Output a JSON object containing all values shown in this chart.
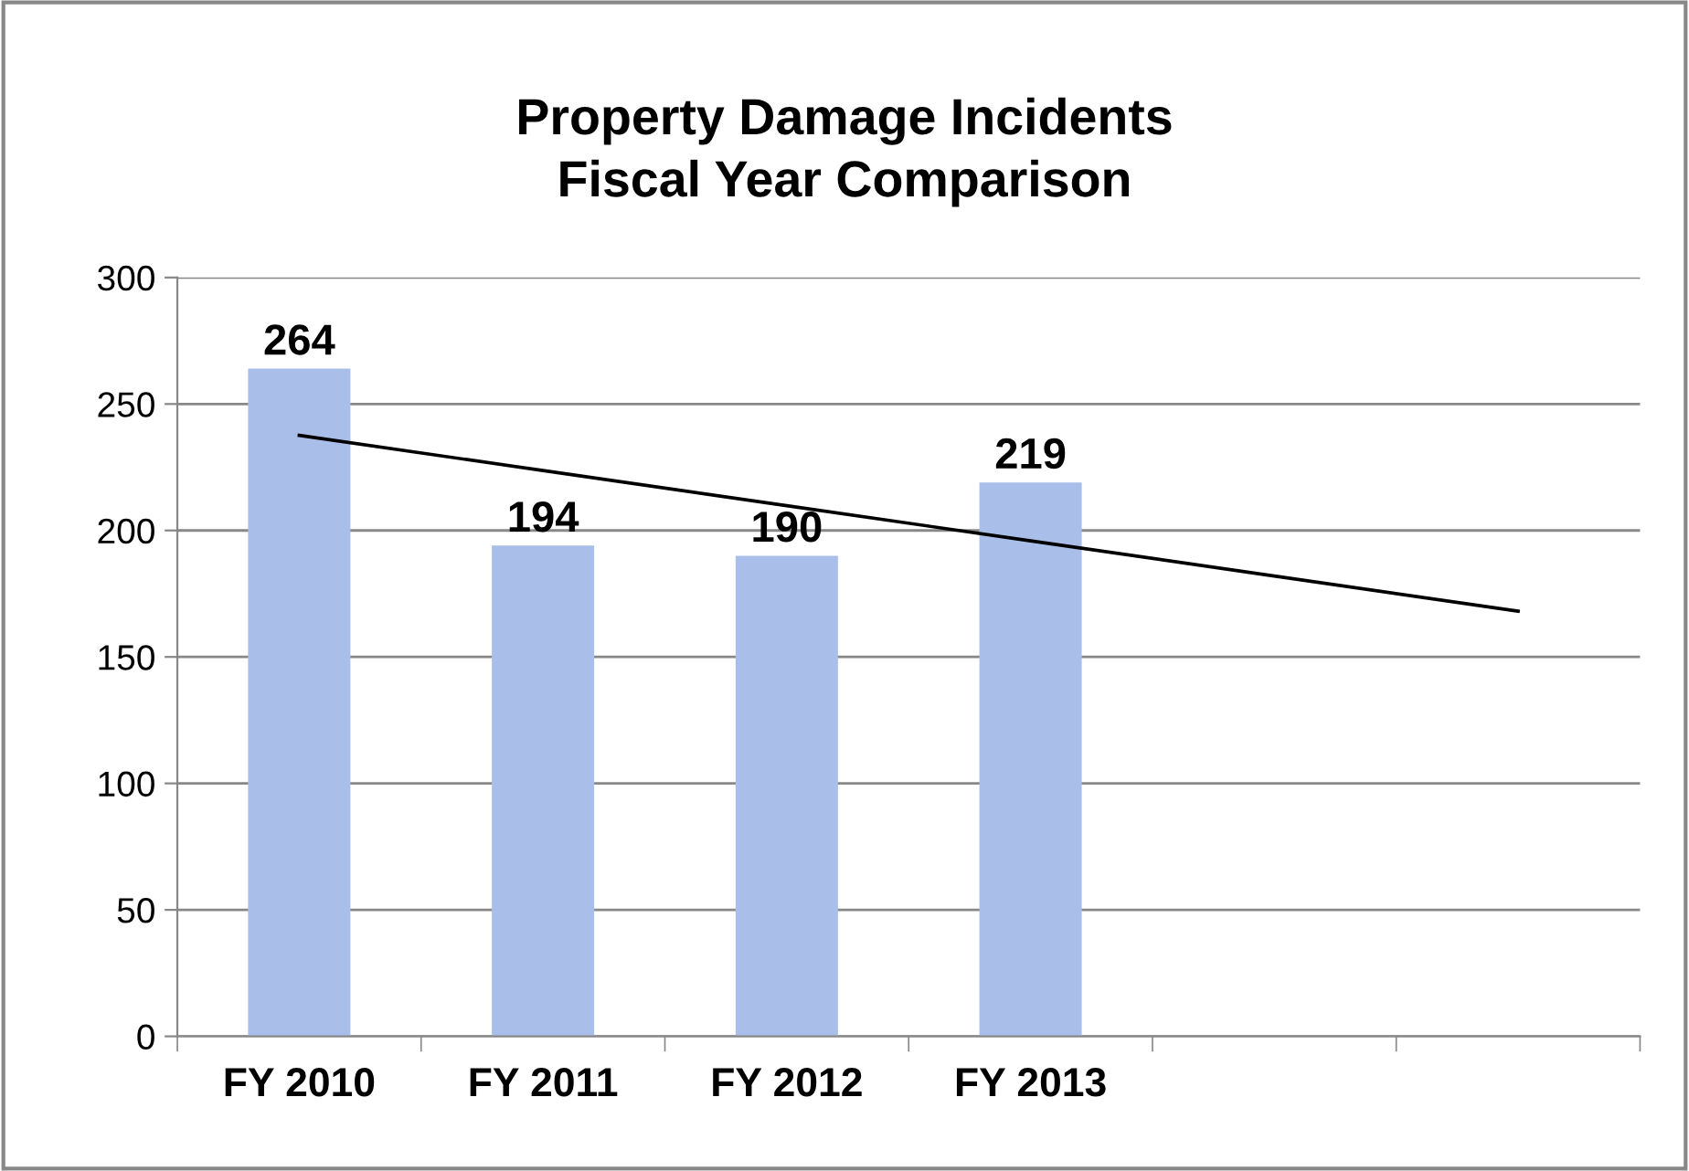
{
  "chart_data": {
    "type": "bar",
    "title": "Property Damage Incidents\nFiscal Year Comparison",
    "categories": [
      "FY 2010",
      "FY 2011",
      "FY 2012",
      "FY 2013",
      null,
      null
    ],
    "series": [
      {
        "color": "#a9bfe9",
        "values": [
          264,
          194,
          190,
          219,
          null,
          null
        ],
        "value_labels": [
          "264",
          "194",
          "190",
          "219",
          null,
          null
        ]
      },
      {
        "type": "line",
        "color": "#000000",
        "values": [
          237.6,
          223.7,
          209.8,
          195.9,
          182.0,
          168.1
        ]
      }
    ],
    "ylim": [
      0,
      300
    ],
    "yticks": [
      0,
      50,
      100,
      150,
      200,
      250,
      300
    ],
    "grid": "y",
    "legend": false,
    "marker": "none",
    "line_style": "solid"
  }
}
